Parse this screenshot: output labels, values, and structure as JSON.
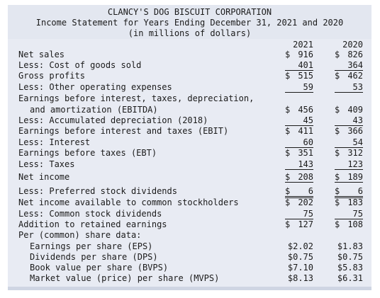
{
  "header": {
    "company": "CLANCY'S DOG BISCUIT CORPORATION",
    "title": "Income Statement for Years Ending December 31, 2021 and 2020",
    "units": "(in millions of dollars)"
  },
  "columns": [
    "2021",
    "2020"
  ],
  "rows": [
    {
      "label": "Net sales",
      "v2021": "916",
      "v2020": "826",
      "dollar": true
    },
    {
      "label": "Less: Cost of goods sold",
      "v2021": "401",
      "v2020": "364"
    },
    {
      "label": "Gross profits",
      "v2021": "515",
      "v2020": "462",
      "dollar": true
    },
    {
      "label": "Less: Other operating expenses",
      "v2021": "59",
      "v2020": "53"
    },
    {
      "label": "Earnings before interest, taxes, depreciation,"
    },
    {
      "label": "and amortization (EBITDA)",
      "v2021": "456",
      "v2020": "409",
      "dollar": true
    },
    {
      "label": "Less: Accumulated depreciation (2018)",
      "v2021": "45",
      "v2020": "43"
    },
    {
      "label": "Earnings before interest and taxes (EBIT)",
      "v2021": "411",
      "v2020": "366",
      "dollar": true
    },
    {
      "label": "Less: Interest",
      "v2021": "60",
      "v2020": "54"
    },
    {
      "label": "Earnings before taxes (EBT)",
      "v2021": "351",
      "v2020": "312",
      "dollar": true
    },
    {
      "label": "Less: Taxes",
      "v2021": "143",
      "v2020": "123"
    },
    {
      "label": "Net income",
      "v2021": "208",
      "v2020": "189",
      "dollar": true
    },
    {
      "label": "Less: Preferred stock dividends",
      "v2021": "6",
      "v2020": "6",
      "dollar": true
    },
    {
      "label": "Net income available to common stockholders",
      "v2021": "202",
      "v2020": "183",
      "dollar": true
    },
    {
      "label": "Less: Common stock dividends",
      "v2021": "75",
      "v2020": "75"
    },
    {
      "label": "Addition to retained earnings",
      "v2021": "127",
      "v2020": "108",
      "dollar": true
    },
    {
      "label": "Per (common) share data:"
    },
    {
      "label": "Earnings per share (EPS)",
      "v2021": "$2.02",
      "v2020": "$1.83"
    },
    {
      "label": "Dividends per share (DPS)",
      "v2021": "$0.75",
      "v2020": "$0.75"
    },
    {
      "label": "Book value per share (BVPS)",
      "v2021": "$7.10",
      "v2020": "$5.83"
    },
    {
      "label": "Market value (price) per share (MVPS)",
      "v2021": "$8.13",
      "v2020": "$6.31"
    }
  ]
}
